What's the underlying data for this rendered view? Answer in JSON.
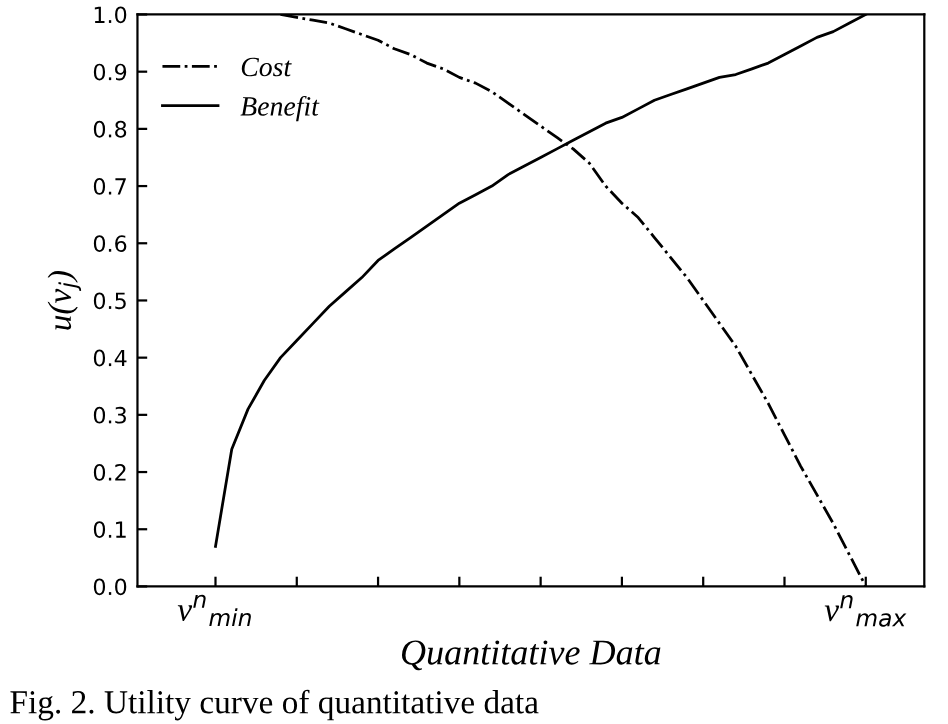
{
  "chart_data": {
    "type": "line",
    "xlabel": "Quantitative Data",
    "ylabel": "u(v$_{j}$)",
    "legend": "top left",
    "grid": false,
    "annotations": [
      "Fig. 2. Utility curve of quantitative data"
    ],
    "categories": [
      "v$^{n}$$_{min}$",
      null,
      null,
      null,
      null,
      null,
      null,
      null,
      null,
      null,
      null,
      null,
      null,
      null,
      null,
      null,
      null,
      null,
      null,
      null,
      null,
      null,
      null,
      null,
      null,
      null,
      null,
      null,
      null,
      null,
      null,
      null,
      null,
      null,
      null,
      null,
      null,
      null,
      null,
      null,
      "v$^{n}$$_{max}$"
    ],
    "ylim": [
      0.0,
      1.0
    ],
    "yticks": [
      {
        "value": 0,
        "label": "0.0"
      },
      {
        "value": 0.1,
        "label": "0.1"
      },
      {
        "value": 0.2,
        "label": "0.2"
      },
      {
        "value": 0.3,
        "label": "0.3"
      },
      {
        "value": 0.4,
        "label": "0.4"
      },
      {
        "value": 0.5,
        "label": "0.5"
      },
      {
        "value": 0.6,
        "label": "0.6"
      },
      {
        "value": 0.7,
        "label": "0.7"
      },
      {
        "value": 0.8,
        "label": "0.8"
      },
      {
        "value": 0.9,
        "label": "0.9"
      },
      {
        "value": 1,
        "label": "1.0"
      }
    ],
    "series": [
      {
        "name": "Cost",
        "color": "#000000",
        "line_style": "dashdot",
        "values": [
          null,
          null,
          null,
          null,
          1.0,
          0.995,
          0.99,
          0.985,
          0.975,
          0.965,
          0.955,
          0.94,
          0.93,
          0.915,
          0.905,
          0.89,
          0.88,
          0.865,
          0.845,
          0.825,
          0.805,
          0.785,
          0.765,
          0.74,
          0.7,
          0.67,
          0.645,
          0.61,
          0.575,
          0.54,
          0.5,
          0.46,
          0.42,
          0.37,
          0.32,
          0.265,
          0.21,
          0.16,
          0.11,
          0.055,
          0.0
        ]
      },
      {
        "name": "Benefit",
        "color": "#000000",
        "line_style": "solid",
        "values": [
          0.07,
          0.24,
          0.31,
          0.36,
          0.4,
          0.43,
          0.46,
          0.49,
          0.515,
          0.54,
          0.57,
          0.59,
          0.61,
          0.63,
          0.65,
          0.67,
          0.685,
          0.7,
          0.72,
          0.735,
          0.75,
          0.765,
          0.78,
          0.795,
          0.81,
          0.82,
          0.835,
          0.85,
          0.86,
          0.87,
          0.88,
          0.89,
          0.895,
          0.905,
          0.915,
          0.93,
          0.945,
          0.96,
          0.97,
          0.985,
          1.0
        ]
      }
    ]
  }
}
